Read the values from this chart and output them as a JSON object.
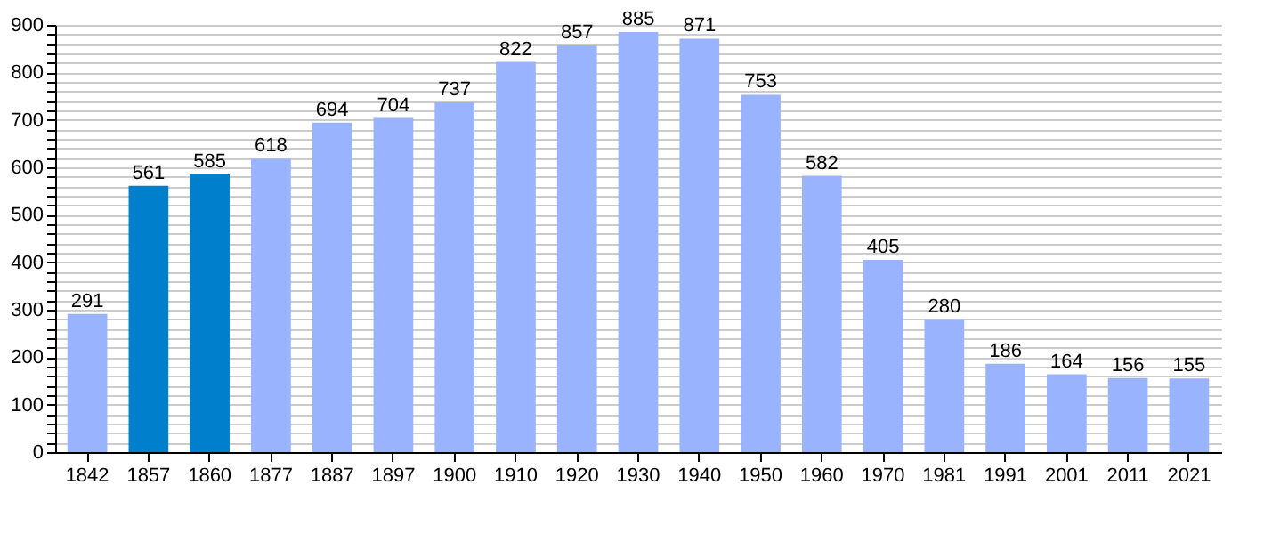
{
  "chart_data": {
    "type": "bar",
    "categories": [
      "1842",
      "1857",
      "1860",
      "1877",
      "1887",
      "1897",
      "1900",
      "1910",
      "1920",
      "1930",
      "1940",
      "1950",
      "1960",
      "1970",
      "1981",
      "1991",
      "2001",
      "2011",
      "2021"
    ],
    "values": [
      291,
      561,
      585,
      618,
      694,
      704,
      737,
      822,
      857,
      885,
      871,
      753,
      582,
      405,
      280,
      186,
      164,
      156,
      155
    ],
    "colors": [
      "#99b3ff",
      "#0080cc",
      "#0080cc",
      "#99b3ff",
      "#99b3ff",
      "#99b3ff",
      "#99b3ff",
      "#99b3ff",
      "#99b3ff",
      "#99b3ff",
      "#99b3ff",
      "#99b3ff",
      "#99b3ff",
      "#99b3ff",
      "#99b3ff",
      "#99b3ff",
      "#99b3ff",
      "#99b3ff",
      "#99b3ff"
    ],
    "ylim": [
      0,
      900
    ],
    "yticks": [
      0,
      {
        "value": 20,
        "label": null
      },
      {
        "value": 40,
        "label": null
      },
      {
        "value": 60,
        "label": null
      },
      {
        "value": 80,
        "label": null
      },
      100,
      {
        "value": 120,
        "label": null
      },
      {
        "value": 140,
        "label": null
      },
      {
        "value": 160,
        "label": null
      },
      {
        "value": 180,
        "label": null
      },
      200,
      {
        "value": 220,
        "label": null
      },
      {
        "value": 240,
        "label": null
      },
      {
        "value": 260,
        "label": null
      },
      {
        "value": 280,
        "label": null
      },
      300,
      {
        "value": 320,
        "label": null
      },
      {
        "value": 340,
        "label": null
      },
      {
        "value": 360,
        "label": null
      },
      {
        "value": 380,
        "label": null
      },
      400,
      {
        "value": 420,
        "label": null
      },
      {
        "value": 440,
        "label": null
      },
      {
        "value": 460,
        "label": null
      },
      {
        "value": 480,
        "label": null
      },
      500,
      {
        "value": 520,
        "label": null
      },
      {
        "value": 540,
        "label": null
      },
      {
        "value": 560,
        "label": null
      },
      {
        "value": 580,
        "label": null
      },
      600,
      {
        "value": 620,
        "label": null
      },
      {
        "value": 640,
        "label": null
      },
      {
        "value": 660,
        "label": null
      },
      {
        "value": 680,
        "label": null
      },
      700,
      {
        "value": 720,
        "label": null
      },
      {
        "value": 740,
        "label": null
      },
      {
        "value": 760,
        "label": null
      },
      {
        "value": 780,
        "label": null
      },
      800,
      {
        "value": 820,
        "label": null
      },
      {
        "value": 840,
        "label": null
      },
      {
        "value": 860,
        "label": null
      },
      {
        "value": 880,
        "label": null
      },
      900
    ],
    "grid": "y",
    "data_labels": true
  }
}
